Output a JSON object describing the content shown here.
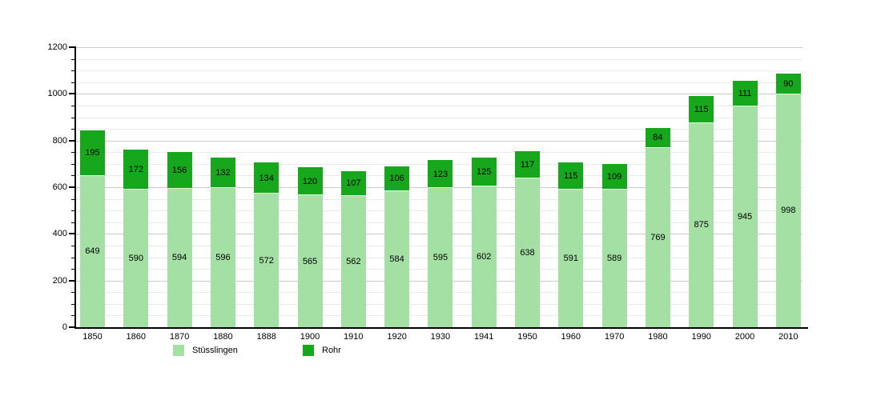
{
  "chart_data": {
    "type": "bar",
    "stacked": true,
    "title": "",
    "xlabel": "",
    "ylabel": "",
    "categories": [
      "1850",
      "1860",
      "1870",
      "1880",
      "1888",
      "1900",
      "1910",
      "1920",
      "1930",
      "1941",
      "1950",
      "1960",
      "1970",
      "1980",
      "1990",
      "2000",
      "2010"
    ],
    "series": [
      {
        "name": "Stüsslingen",
        "color": "#a4e0a4",
        "values": [
          649,
          590,
          594,
          596,
          572,
          565,
          562,
          584,
          595,
          602,
          638,
          591,
          589,
          769,
          875,
          945,
          998
        ]
      },
      {
        "name": "Rohr",
        "color": "#16a71c",
        "values": [
          195,
          172,
          156,
          132,
          134,
          120,
          107,
          106,
          123,
          125,
          117,
          115,
          109,
          84,
          115,
          111,
          90
        ]
      }
    ],
    "ylim": [
      0,
      1200
    ],
    "ytick_step": 200,
    "minor_tick_step": 50,
    "y_tick_labels": [
      "0",
      "200",
      "400",
      "600",
      "800",
      "1000",
      "1200"
    ],
    "grid": true,
    "bar_value_labels": true,
    "legend_position": "bottom",
    "colors": {
      "background": "#ffffff",
      "axis": "#000000",
      "grid_major": "#cbcbcb",
      "grid_minor": "#e9e9e9",
      "value_label": "#000000",
      "segment_separator": "#e2f6e2"
    }
  }
}
